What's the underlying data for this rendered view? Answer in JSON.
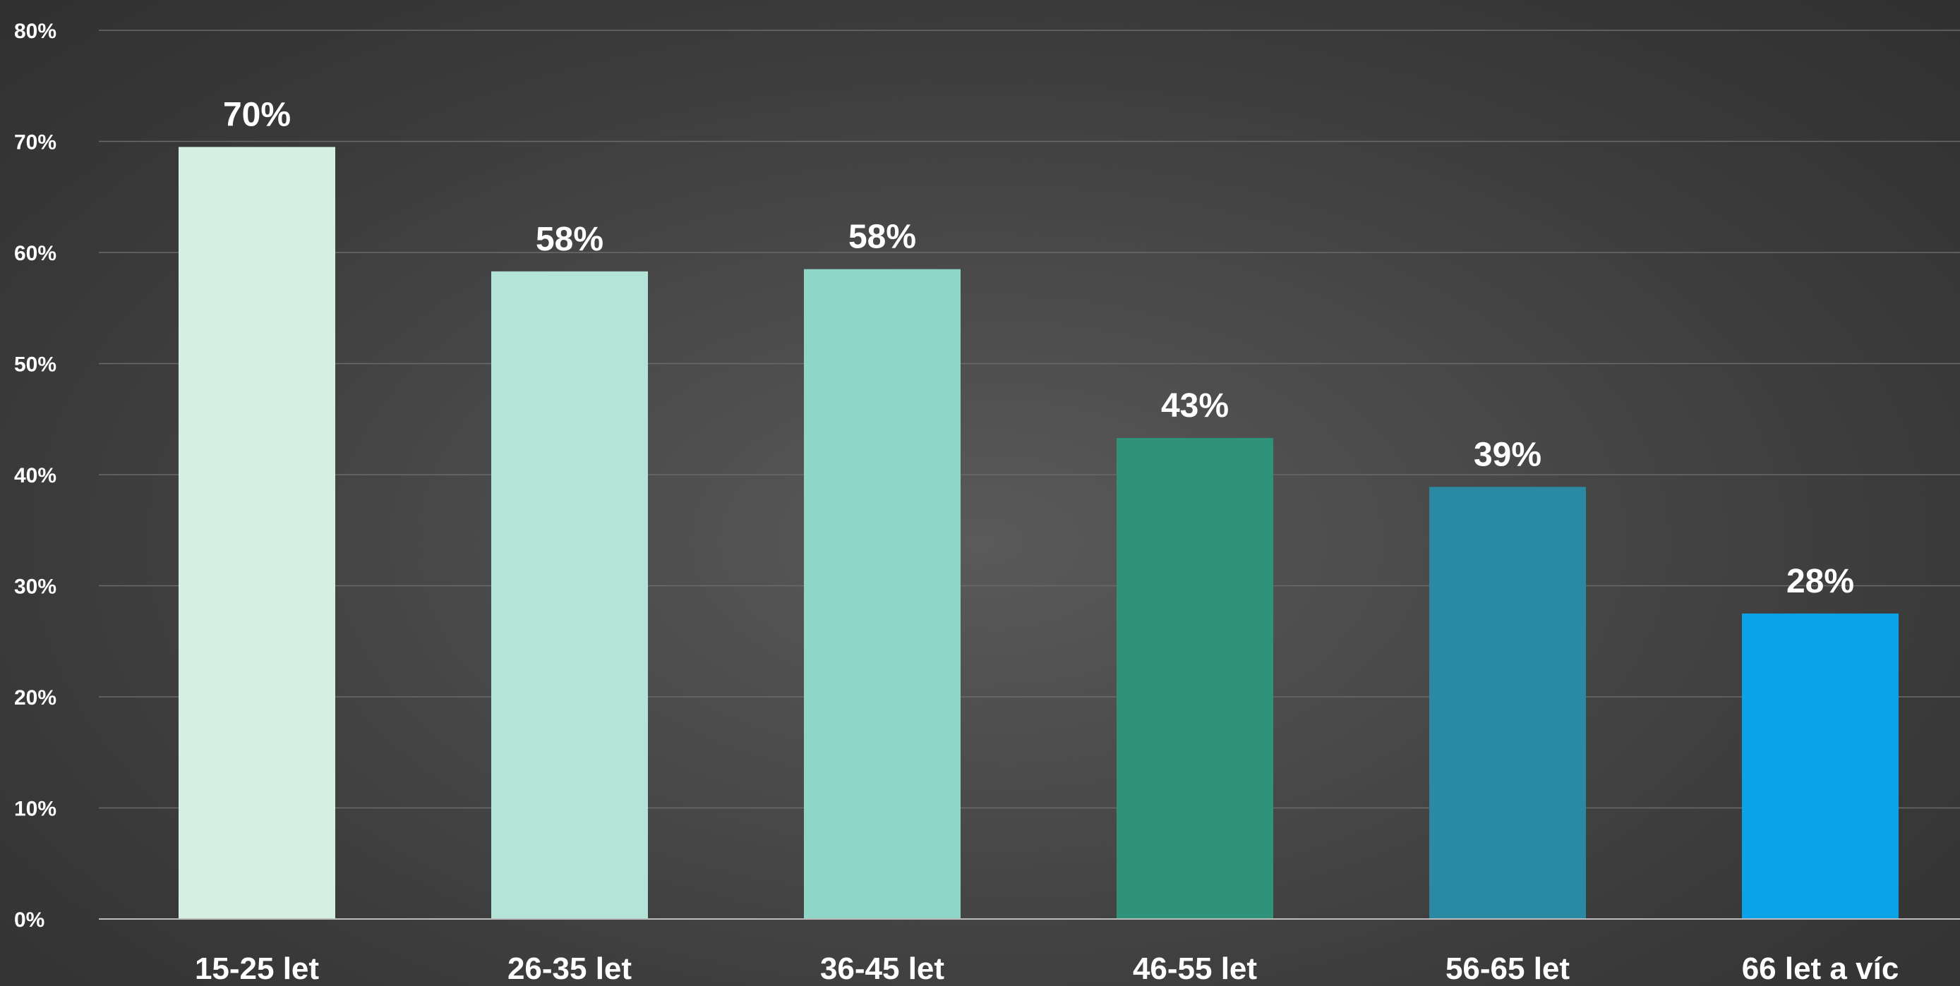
{
  "chart_data": {
    "type": "bar",
    "title": "",
    "xlabel": "",
    "ylabel": "",
    "categories": [
      "15-25 let",
      "26-35 let",
      "36-45 let",
      "46-55 let",
      "56-65 let",
      "66 let a víc"
    ],
    "values": [
      69.5,
      58.3,
      58.5,
      43.3,
      38.9,
      27.5
    ],
    "data_labels": [
      "70%",
      "58%",
      "58%",
      "43%",
      "39%",
      "28%"
    ],
    "bar_colors": [
      "#d5efe3",
      "#b3e4d7",
      "#8ed6c8",
      "#2e9378",
      "#2a8aa4",
      "#0aa2e8"
    ],
    "ylim": [
      0,
      80
    ],
    "yticks": [
      0,
      10,
      20,
      30,
      40,
      50,
      60,
      70,
      80
    ],
    "ytick_labels": [
      "0%",
      "10%",
      "20%",
      "30%",
      "40%",
      "50%",
      "60%",
      "70%",
      "80%"
    ],
    "grid": true,
    "legend": "none",
    "background_color": "#474747",
    "text_color": "#ffffff"
  }
}
